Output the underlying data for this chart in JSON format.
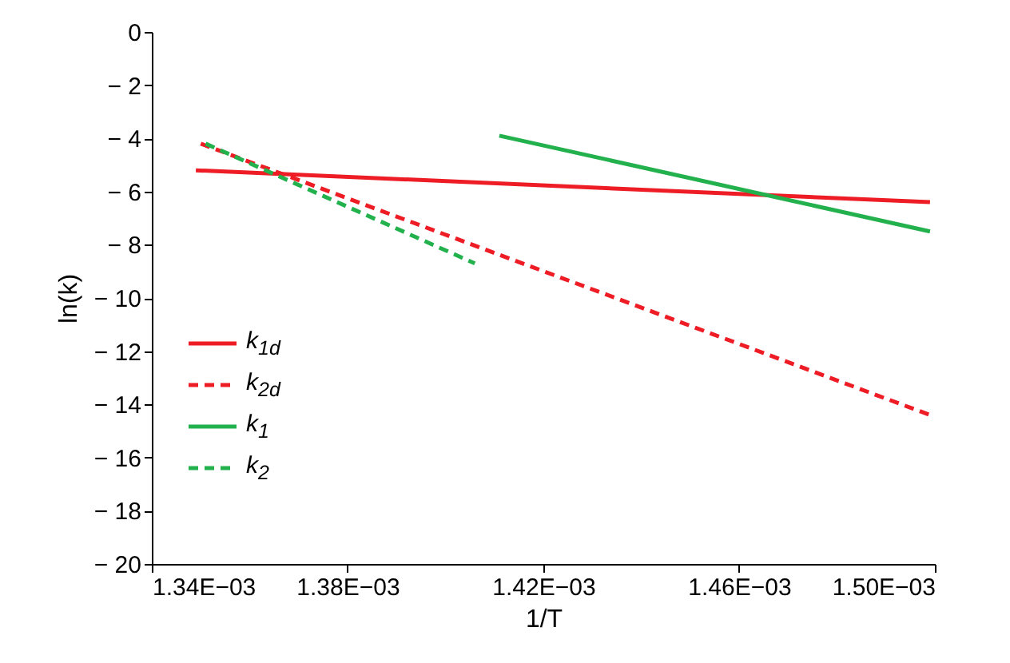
{
  "chart_data": {
    "type": "line",
    "xlabel": "1/T",
    "ylabel": "ln(k)",
    "xlim": [
      0.00134,
      0.0015
    ],
    "xticks": [
      {
        "value": 0.00134,
        "label": "1.34E−03"
      },
      {
        "value": 0.00138,
        "label": "1.38E−03"
      },
      {
        "value": 0.00142,
        "label": "1.42E−03"
      },
      {
        "value": 0.00146,
        "label": "1.46E−03"
      },
      {
        "value": 0.0015,
        "label": "1.50E−03"
      }
    ],
    "ylim": [
      -20,
      0
    ],
    "yticks": [
      {
        "value": -20,
        "label": "− 20"
      },
      {
        "value": -18,
        "label": "− 18"
      },
      {
        "value": -16,
        "label": "− 16"
      },
      {
        "value": -14,
        "label": "− 14"
      },
      {
        "value": -12,
        "label": "− 12"
      },
      {
        "value": -10,
        "label": "− 10"
      },
      {
        "value": -8,
        "label": "− 8"
      },
      {
        "value": -6,
        "label": "− 6"
      },
      {
        "value": -4,
        "label": "− 4"
      },
      {
        "value": -2,
        "label": "− 2"
      },
      0
    ],
    "grid": false,
    "legend": "bottom left",
    "marker": "none",
    "series": [
      {
        "name": "k$_{1d}$",
        "color": "#ee1c25",
        "line_style": "solid",
        "x": [
          0.001349,
          0.001499
        ],
        "values": [
          -5.2,
          -6.4
        ]
      },
      {
        "name": "k$_{2d}$",
        "color": "#ee1c25",
        "line_style": "dashed",
        "x": [
          0.00135,
          0.001499
        ],
        "values": [
          -4.2,
          -14.4
        ]
      },
      {
        "name": "k$_{1}$",
        "color": "#22b14c",
        "line_style": "solid",
        "x": [
          0.001411,
          0.001499
        ],
        "values": [
          -3.9,
          -7.5
        ]
      },
      {
        "name": "k$_{2}$",
        "color": "#22b14c",
        "line_style": "dashed",
        "x": [
          0.001351,
          0.001406
        ],
        "values": [
          -4.2,
          -8.7
        ]
      }
    ]
  }
}
